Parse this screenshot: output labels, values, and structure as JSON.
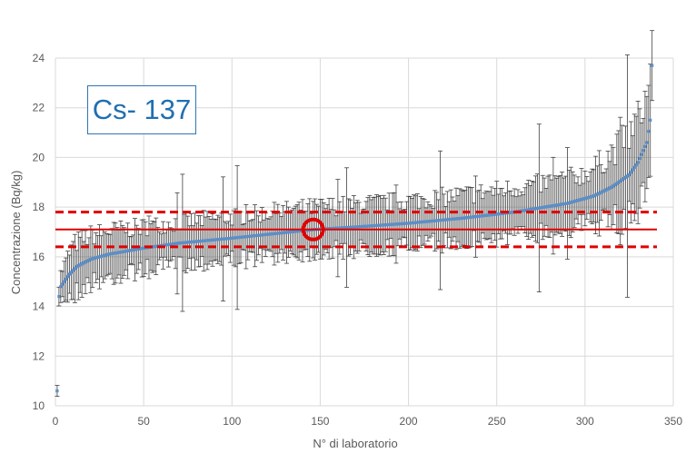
{
  "chart_data": {
    "type": "scatter",
    "title": "Cs- 137",
    "xlabel": "N° di laboratorio",
    "ylabel": "Concentrazione (Bq/kg)",
    "xlim": [
      0,
      350
    ],
    "ylim": [
      10,
      24
    ],
    "xticks": [
      "0",
      "50",
      "100",
      "150",
      "200",
      "250",
      "300",
      "350"
    ],
    "yticks": [
      "10",
      "12",
      "14",
      "16",
      "18",
      "20",
      "22",
      "24"
    ],
    "grid": true,
    "n_labs": 338,
    "sorted_profile": {
      "x": [
        1,
        2,
        3,
        5,
        8,
        12,
        20,
        30,
        50,
        70,
        100,
        120,
        140,
        147,
        170,
        200,
        230,
        260,
        290,
        305,
        315,
        325,
        330,
        335,
        337,
        338
      ],
      "y": [
        10.6,
        14.4,
        14.8,
        15.0,
        15.3,
        15.6,
        15.9,
        16.1,
        16.35,
        16.55,
        16.75,
        16.9,
        17.05,
        17.1,
        17.2,
        17.35,
        17.55,
        17.8,
        18.15,
        18.45,
        18.8,
        19.3,
        19.8,
        20.6,
        21.5,
        23.7
      ]
    },
    "error_bar_uncertainty": {
      "x": [
        1,
        10,
        50,
        100,
        150,
        200,
        250,
        300,
        320,
        338
      ],
      "u": [
        0.4,
        1.0,
        0.85,
        0.85,
        0.9,
        0.9,
        0.95,
        1.0,
        1.5,
        2.0
      ]
    },
    "reference_lines": [
      {
        "y": 17.1,
        "style": "solid",
        "color": "#e00000"
      },
      {
        "y": 17.8,
        "style": "dashed",
        "color": "#e00000"
      },
      {
        "y": 16.4,
        "style": "dashed",
        "color": "#e00000"
      }
    ],
    "highlight": {
      "x": 146,
      "y": 17.1,
      "color": "#e00000"
    },
    "colors": {
      "series": "#5b8fc9",
      "errorbar": "#404040",
      "grid": "#d9d9d9"
    }
  }
}
